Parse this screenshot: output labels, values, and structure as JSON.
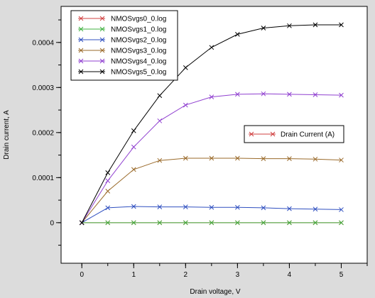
{
  "chart_data": {
    "type": "line",
    "xlabel": "Drain voltage, V",
    "ylabel": "Drain current, A",
    "xlim": [
      -0.4,
      5.5
    ],
    "ylim": [
      -9e-05,
      0.00048
    ],
    "x_ticks": [
      0,
      1,
      2,
      3,
      4,
      5
    ],
    "x_minor_step": 0.5,
    "y_ticks": [
      0,
      0.0001,
      0.0002,
      0.0003,
      0.0004
    ],
    "y_tick_labels": [
      "0",
      "0.0001",
      "0.0002",
      "0.0003",
      "0.0004"
    ],
    "y_minor_step": 5e-05,
    "grid": false,
    "legend_position": "top-left",
    "x": [
      0,
      0.5,
      1,
      1.5,
      2,
      2.5,
      3,
      3.5,
      4,
      4.5,
      5
    ],
    "series": [
      {
        "name": "NMOSvgs0_0.log",
        "color": "#d04040",
        "values": [
          0,
          0,
          0,
          0,
          0,
          0,
          0,
          0,
          0,
          0,
          0
        ]
      },
      {
        "name": "NMOSvgs1_0.log",
        "color": "#40b040",
        "values": [
          0,
          0,
          0,
          0,
          0,
          0,
          0,
          0,
          0,
          0,
          0
        ]
      },
      {
        "name": "NMOSvgs2_0.log",
        "color": "#3050c0",
        "values": [
          0,
          3.3e-05,
          3.6e-05,
          3.5e-05,
          3.5e-05,
          3.4e-05,
          3.4e-05,
          3.3e-05,
          3.1e-05,
          3e-05,
          2.9e-05
        ]
      },
      {
        "name": "NMOSvgs3_0.log",
        "color": "#9a6a2a",
        "values": [
          0,
          7e-05,
          0.000118,
          0.000138,
          0.000143,
          0.000143,
          0.000143,
          0.000142,
          0.000142,
          0.000141,
          0.000139
        ]
      },
      {
        "name": "NMOSvgs4_0.log",
        "color": "#9040d0",
        "values": [
          0,
          9.3e-05,
          0.000168,
          0.000226,
          0.000261,
          0.000279,
          0.000285,
          0.000286,
          0.000285,
          0.000284,
          0.000283
        ]
      },
      {
        "name": "NMOSvgs5_0.log",
        "color": "#000000",
        "values": [
          0,
          0.000111,
          0.000204,
          0.000282,
          0.000344,
          0.000389,
          0.000418,
          0.000432,
          0.000437,
          0.000439,
          0.000439
        ]
      }
    ],
    "annotation_legend": {
      "label": "Drain Current (A)",
      "color": "#d04040"
    }
  }
}
